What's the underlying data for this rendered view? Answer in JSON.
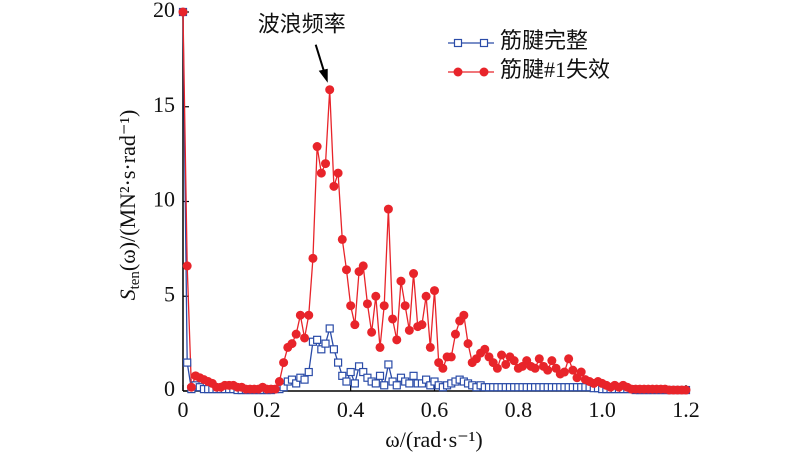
{
  "chart_data": {
    "type": "line",
    "x_label": "ω/(rad·s⁻¹)",
    "y_label": [
      "S",
      "ten",
      "(ω)/(MN²·s·rad⁻¹)"
    ],
    "annotation": {
      "text": "波浪频率",
      "x": 0.35,
      "y": 15.9
    },
    "legend": "upper right",
    "xlim": [
      0,
      1.2
    ],
    "ylim": [
      0,
      20
    ],
    "xticks": [
      0,
      0.2,
      0.4,
      0.6,
      0.8,
      {
        "value": 1,
        "label": "1.0"
      },
      1.2
    ],
    "yticks": [
      0,
      5,
      10,
      15,
      20
    ],
    "x": [
      0,
      0.01,
      0.02,
      0.03,
      0.04,
      0.05,
      0.06,
      0.07,
      0.08,
      0.09,
      0.1,
      0.11,
      0.12,
      0.13,
      0.14,
      0.15,
      0.16,
      0.17,
      0.18,
      0.19,
      0.2,
      0.21,
      0.22,
      0.23,
      0.24,
      0.25,
      0.26,
      0.27,
      0.28,
      0.29,
      0.3,
      0.31,
      0.32,
      0.33,
      0.34,
      0.35,
      0.36,
      0.37,
      0.38,
      0.39,
      0.4,
      0.41,
      0.42,
      0.43,
      0.44,
      0.45,
      0.46,
      0.47,
      0.48,
      0.49,
      0.5,
      0.51,
      0.52,
      0.53,
      0.54,
      0.55,
      0.56,
      0.57,
      0.58,
      0.59,
      0.6,
      0.61,
      0.62,
      0.63,
      0.64,
      0.65,
      0.66,
      0.67,
      0.68,
      0.69,
      0.7,
      0.71,
      0.72,
      0.73,
      0.74,
      0.75,
      0.76,
      0.77,
      0.78,
      0.79,
      0.8,
      0.81,
      0.82,
      0.83,
      0.84,
      0.85,
      0.86,
      0.87,
      0.88,
      0.89,
      0.9,
      0.91,
      0.92,
      0.93,
      0.94,
      0.95,
      0.96,
      0.97,
      0.98,
      0.99,
      1,
      1.01,
      1.02,
      1.03,
      1.04,
      1.05,
      1.06,
      1.07,
      1.08,
      1.09,
      1.1,
      1.11,
      1.12,
      1.13,
      1.14,
      1.15,
      1.16,
      1.17,
      1.18,
      1.19,
      1.2
    ],
    "series": [
      {
        "name": "筋腱完整",
        "color": "#2b4ca8",
        "marker": "square",
        "values": [
          20,
          1.5,
          0.1,
          0.3,
          0.2,
          0.1,
          0.1,
          0.1,
          0.1,
          0.1,
          0.1,
          0.1,
          0.1,
          0.05,
          0.05,
          0.05,
          0.05,
          0.05,
          0.05,
          0.05,
          0.05,
          0.05,
          0.1,
          0.1,
          0.2,
          0.5,
          0.6,
          0.4,
          0.7,
          0.6,
          1.0,
          2.6,
          2.7,
          2.2,
          2.5,
          3.3,
          2.2,
          1.5,
          0.8,
          0.5,
          1.0,
          0.4,
          1.3,
          1.0,
          0.7,
          0.5,
          0.4,
          0.8,
          0.3,
          1.4,
          0.5,
          0.3,
          0.7,
          0.5,
          0.4,
          0.8,
          0.4,
          0.4,
          0.6,
          0.3,
          0.5,
          0.3,
          0.2,
          0.3,
          0.4,
          0.5,
          0.6,
          0.5,
          0.4,
          0.3,
          0.2,
          0.3,
          0.2,
          0.2,
          0.2,
          0.2,
          0.2,
          0.2,
          0.2,
          0.2,
          0.2,
          0.2,
          0.2,
          0.2,
          0.2,
          0.2,
          0.2,
          0.2,
          0.2,
          0.2,
          0.2,
          0.2,
          0.2,
          0.2,
          0.2,
          0.2,
          0.2,
          0.2,
          0.15,
          0.15,
          0.1,
          0.1,
          0.1,
          0.1,
          0.1,
          0.1,
          0.1,
          0.1,
          0.05,
          0.05,
          0.05,
          0.05,
          0.05,
          0.05,
          0.05,
          0.05,
          0.05,
          0.05,
          0.05,
          0.05,
          0.05
        ]
      },
      {
        "name": "筋腱#1失效",
        "color": "#e8242a",
        "marker": "circle",
        "values": [
          20,
          6.6,
          0.2,
          0.8,
          0.7,
          0.6,
          0.5,
          0.4,
          0.2,
          0.2,
          0.3,
          0.3,
          0.3,
          0.2,
          0.2,
          0.1,
          0.1,
          0.1,
          0.1,
          0.2,
          0.1,
          0.1,
          0.1,
          0.5,
          1.5,
          2.3,
          2.5,
          3.0,
          4.0,
          2.8,
          4.0,
          7.0,
          12.9,
          11.5,
          12.0,
          15.9,
          10.8,
          11.5,
          8.0,
          6.4,
          4.5,
          3.5,
          6.3,
          6.6,
          4.6,
          3.1,
          5.0,
          2.3,
          4.5,
          9.6,
          3.8,
          2.7,
          5.8,
          4.5,
          3.2,
          6.2,
          3.4,
          3.5,
          5.0,
          2.3,
          5.3,
          1.5,
          1.2,
          1.8,
          1.8,
          3.0,
          3.7,
          4.0,
          2.5,
          1.5,
          1.7,
          2.0,
          2.2,
          1.8,
          1.5,
          1.2,
          1.9,
          1.4,
          1.8,
          1.6,
          1.2,
          1.3,
          1.6,
          1.3,
          1.2,
          1.7,
          1.3,
          1.1,
          1.6,
          1.2,
          0.9,
          1.0,
          1.7,
          1.1,
          0.7,
          1.0,
          0.6,
          0.5,
          0.4,
          0.5,
          0.4,
          0.3,
          0.2,
          0.3,
          0.2,
          0.3,
          0.2,
          0.1,
          0.1,
          0.1,
          0.1,
          0.1,
          0.1,
          0.1,
          0.1,
          0.1,
          0.05,
          0.05,
          0.05,
          0.05,
          0.05
        ]
      }
    ]
  }
}
